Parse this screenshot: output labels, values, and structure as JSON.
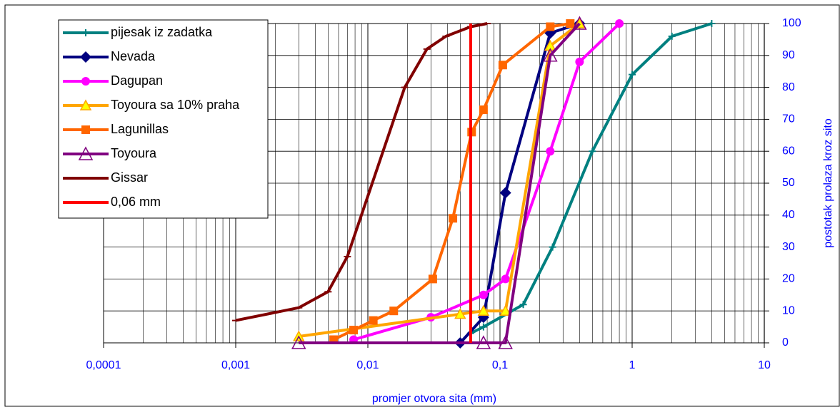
{
  "chart_data": {
    "type": "line",
    "x_label": "promjer otvora sita (mm)",
    "y_label": "postotak prolaza kroz sito",
    "x_scale": "log",
    "y_axis_side": "right",
    "grid": true,
    "legend": "top-left",
    "xlim": [
      0.0001,
      10
    ],
    "ylim": [
      0,
      100
    ],
    "xticks": [
      {
        "value": 0.0001,
        "label": "0,0001"
      },
      {
        "value": 0.001,
        "label": "0,001"
      },
      {
        "value": 0.01,
        "label": "0,01"
      },
      {
        "value": 0.1,
        "label": "0,1"
      },
      1,
      10
    ],
    "minor_xticks": [
      0.0002,
      0.0003,
      0.0004,
      0.0005,
      0.0006,
      0.0007,
      0.0008,
      0.0009,
      0.002,
      0.003,
      0.004,
      0.005,
      0.006,
      0.007,
      0.008,
      0.009,
      0.02,
      0.03,
      0.04,
      0.05,
      0.06,
      0.07,
      0.08,
      0.09,
      0.2,
      0.3,
      0.4,
      0.5,
      0.6,
      0.7,
      0.8,
      0.9,
      2,
      3,
      4,
      5,
      6,
      7,
      8,
      9
    ],
    "yticks": [
      0,
      10,
      20,
      30,
      40,
      50,
      60,
      70,
      80,
      90,
      100
    ],
    "series": [
      {
        "name": "pijesak iz zadatka",
        "color": "#008080",
        "marker": "plus",
        "x": [
          0.06,
          0.075,
          0.15,
          0.25,
          0.5,
          1,
          2,
          4
        ],
        "values": [
          3,
          5,
          12,
          30,
          60,
          84,
          96,
          100
        ]
      },
      {
        "name": "Nevada",
        "color": "#000080",
        "marker": "diamond",
        "x": [
          0.05,
          0.075,
          0.11,
          0.24,
          0.4
        ],
        "values": [
          0,
          8,
          47,
          97,
          100
        ]
      },
      {
        "name": "Dagupan",
        "color": "#ff00ff",
        "marker": "circle",
        "x": [
          0.0078,
          0.03,
          0.075,
          0.11,
          0.24,
          0.4,
          0.8
        ],
        "values": [
          1,
          8,
          15,
          20,
          60,
          88,
          100
        ]
      },
      {
        "name": "Toyoura sa 10% praha",
        "color": "#ffa500",
        "marker": "triangle",
        "marker_fill": "#ffff00",
        "x": [
          0.003,
          0.05,
          0.075,
          0.11,
          0.24,
          0.4
        ],
        "values": [
          2,
          9,
          10,
          10,
          93,
          100
        ]
      },
      {
        "name": "Lagunillas",
        "color": "#ff6600",
        "marker": "square",
        "x": [
          0.0055,
          0.0078,
          0.011,
          0.0157,
          0.031,
          0.044,
          0.061,
          0.075,
          0.105,
          0.24,
          0.34
        ],
        "values": [
          1,
          4,
          7,
          10,
          20,
          39,
          66,
          73,
          87,
          99,
          100
        ]
      },
      {
        "name": "Toyoura",
        "color": "#800080",
        "marker": "triangle-open",
        "x": [
          0.003,
          0.075,
          0.11,
          0.24,
          0.4
        ],
        "values": [
          0,
          0,
          0,
          90,
          100
        ]
      },
      {
        "name": "Gissar",
        "color": "#800000",
        "marker": "dash",
        "x": [
          0.001,
          0.003,
          0.005,
          0.007,
          0.019,
          0.028,
          0.039,
          0.06,
          0.08
        ],
        "values": [
          7,
          11,
          16,
          27,
          80,
          92,
          96,
          99,
          100
        ]
      },
      {
        "name": "0,06 mm",
        "color": "#ff0000",
        "marker": "none",
        "x": [
          0.06,
          0.06
        ],
        "values": [
          0,
          100
        ]
      }
    ]
  }
}
